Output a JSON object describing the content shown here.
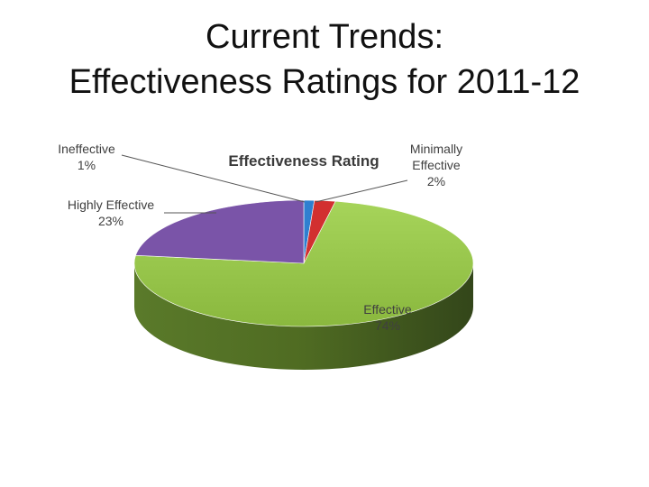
{
  "slide": {
    "title_line1": "Current Trends:",
    "title_line2": "Effectiveness Ratings for 2011-12"
  },
  "chart_data": {
    "type": "pie",
    "title": "Effectiveness Rating",
    "slices": [
      {
        "label": "Ineffective",
        "value": 1,
        "value_label": "1%",
        "color": "#2f7fd0"
      },
      {
        "label": "Minimally Effective",
        "label_lines": [
          "Minimally",
          "Effective"
        ],
        "value": 2,
        "value_label": "2%",
        "color": "#d23030"
      },
      {
        "label": "Effective",
        "value": 74,
        "value_label": "74%",
        "color": "#9ac94a"
      },
      {
        "label": "Highly Effective",
        "value": 23,
        "value_label": "23%",
        "color": "#7a54a8"
      }
    ],
    "style": "3d"
  }
}
